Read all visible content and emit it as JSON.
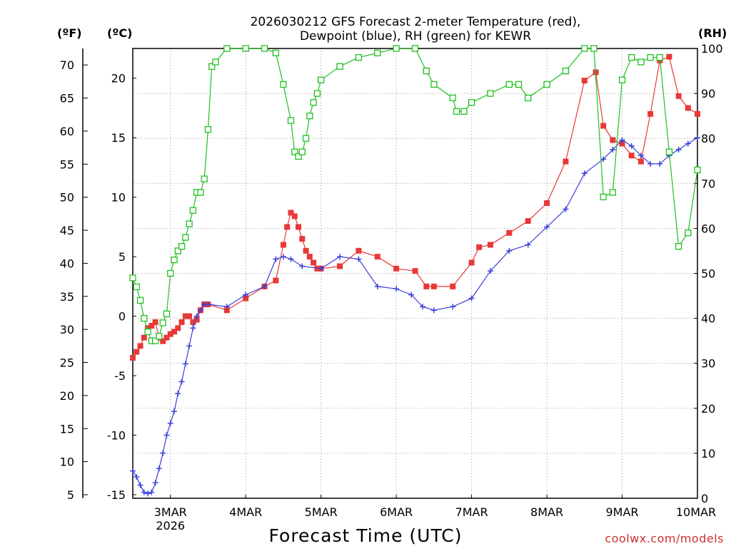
{
  "title_line1": "2026030212 GFS Forecast 2-meter Temperature (red),",
  "title_line2": "Dewpoint (blue), RH (green) for KEWR",
  "unit_f": "(ºF)",
  "unit_c": "(ºC)",
  "unit_rh": "(RH)",
  "xlabel": "Forecast Time (UTC)",
  "credit": "coolwx.com/models",
  "colors": {
    "temperature": "#e83838",
    "dewpoint": "#3a40d8",
    "rh": "#20c020",
    "grid": "#9a9a9a"
  },
  "chart_data": {
    "type": "line",
    "title": "2026030212 GFS Forecast 2-meter Temperature (red), Dewpoint (blue), RH (green) for KEWR",
    "xlabel": "Forecast Time (UTC)",
    "x_unit": "days since 2026-03-02 00Z",
    "xlim": [
      0.5,
      8.0
    ],
    "x_ticks": [
      {
        "x": 1,
        "label": "3MAR",
        "sublabel": "2026"
      },
      {
        "x": 2,
        "label": "4MAR"
      },
      {
        "x": 3,
        "label": "5MAR"
      },
      {
        "x": 4,
        "label": "6MAR"
      },
      {
        "x": 5,
        "label": "7MAR"
      },
      {
        "x": 6,
        "label": "8MAR"
      },
      {
        "x": 7,
        "label": "9MAR"
      },
      {
        "x": 8,
        "label": "10MAR"
      }
    ],
    "y_left_c": {
      "label": "(ºC)",
      "ylim": [
        -15.3,
        22.5
      ],
      "ticks": [
        -15,
        -10,
        -5,
        0,
        5,
        10,
        15,
        20
      ]
    },
    "y_left_f": {
      "label": "(ºF)",
      "ticks": [
        5,
        10,
        15,
        20,
        25,
        30,
        35,
        40,
        45,
        50,
        55,
        60,
        65,
        70
      ]
    },
    "y_right_rh": {
      "label": "(RH)",
      "ylim": [
        0,
        100
      ],
      "ticks": [
        0,
        10,
        20,
        30,
        40,
        50,
        60,
        70,
        80,
        90,
        100
      ]
    },
    "series": [
      {
        "name": "Temperature",
        "axis": "celsius",
        "marker": "square",
        "color": "#e83838",
        "x": [
          0.5,
          0.55,
          0.6,
          0.65,
          0.7,
          0.75,
          0.8,
          0.85,
          0.9,
          0.95,
          1.0,
          1.05,
          1.1,
          1.15,
          1.2,
          1.25,
          1.3,
          1.35,
          1.4,
          1.45,
          1.5,
          1.75,
          2.0,
          2.25,
          2.4,
          2.5,
          2.55,
          2.6,
          2.65,
          2.7,
          2.75,
          2.8,
          2.85,
          2.9,
          2.95,
          3.0,
          3.25,
          3.5,
          3.75,
          4.0,
          4.25,
          4.4,
          4.5,
          4.75,
          5.0,
          5.1,
          5.25,
          5.5,
          5.75,
          6.0,
          6.25,
          6.5,
          6.65,
          6.75,
          6.875,
          7.0,
          7.125,
          7.25,
          7.375,
          7.5,
          7.625,
          7.75,
          7.875,
          8.0
        ],
        "values": [
          -3.5,
          -3.0,
          -2.5,
          -1.8,
          -1.0,
          -0.8,
          -0.5,
          -1.8,
          -2.1,
          -1.8,
          -1.5,
          -1.3,
          -1.0,
          -0.5,
          0.0,
          0.0,
          -0.5,
          -0.3,
          0.5,
          1.0,
          1.0,
          0.5,
          1.5,
          2.5,
          3.0,
          6.0,
          7.5,
          8.7,
          8.4,
          7.5,
          6.5,
          5.5,
          5.0,
          4.5,
          4.0,
          4.0,
          4.2,
          5.5,
          5.0,
          4.0,
          3.8,
          2.5,
          2.5,
          2.5,
          4.5,
          5.8,
          6.0,
          7.0,
          8.0,
          9.5,
          13.0,
          19.8,
          20.5,
          16.0,
          14.8,
          14.5,
          13.5,
          13.0,
          17.0,
          21.5,
          21.8,
          18.5,
          17.5,
          17.0
        ]
      },
      {
        "name": "Dewpoint",
        "axis": "celsius",
        "marker": "plus",
        "color": "#3a40d8",
        "x": [
          0.5,
          0.55,
          0.6,
          0.65,
          0.7,
          0.75,
          0.8,
          0.85,
          0.9,
          0.95,
          1.0,
          1.05,
          1.1,
          1.15,
          1.2,
          1.25,
          1.3,
          1.35,
          1.4,
          1.45,
          1.5,
          1.75,
          2.0,
          2.25,
          2.4,
          2.5,
          2.6,
          2.75,
          3.0,
          3.25,
          3.5,
          3.75,
          4.0,
          4.2,
          4.35,
          4.5,
          4.75,
          5.0,
          5.25,
          5.5,
          5.75,
          6.0,
          6.25,
          6.5,
          6.75,
          6.875,
          7.0,
          7.125,
          7.25,
          7.375,
          7.5,
          7.625,
          7.75,
          7.875,
          8.0
        ],
        "values": [
          -13.0,
          -13.5,
          -14.2,
          -14.8,
          -14.9,
          -14.8,
          -14.0,
          -12.8,
          -11.5,
          -10.0,
          -9.0,
          -8.0,
          -6.5,
          -5.5,
          -4.0,
          -2.5,
          -1.0,
          0.0,
          0.5,
          1.0,
          1.0,
          0.8,
          1.8,
          2.5,
          4.8,
          5.0,
          4.8,
          4.2,
          4.0,
          5.0,
          4.8,
          2.5,
          2.3,
          1.8,
          0.8,
          0.5,
          0.8,
          1.5,
          3.8,
          5.5,
          6.0,
          7.5,
          9.0,
          12.0,
          13.2,
          14.0,
          14.8,
          14.3,
          13.5,
          12.8,
          12.8,
          13.5,
          14.0,
          14.5,
          15.0
        ]
      },
      {
        "name": "Relative Humidity",
        "axis": "rh",
        "marker": "open-square",
        "color": "#20c020",
        "x": [
          0.5,
          0.55,
          0.6,
          0.65,
          0.7,
          0.75,
          0.8,
          0.85,
          0.9,
          0.95,
          1.0,
          1.05,
          1.1,
          1.15,
          1.2,
          1.25,
          1.3,
          1.35,
          1.4,
          1.45,
          1.5,
          1.55,
          1.6,
          1.75,
          2.0,
          2.25,
          2.4,
          2.5,
          2.6,
          2.65,
          2.7,
          2.75,
          2.8,
          2.85,
          2.9,
          2.95,
          3.0,
          3.25,
          3.5,
          3.75,
          4.0,
          4.25,
          4.4,
          4.5,
          4.75,
          4.8,
          4.9,
          5.0,
          5.25,
          5.5,
          5.625,
          5.75,
          6.0,
          6.25,
          6.5,
          6.625,
          6.75,
          6.875,
          7.0,
          7.125,
          7.25,
          7.375,
          7.5,
          7.625,
          7.75,
          7.875,
          8.0
        ],
        "values": [
          49,
          47,
          44,
          40,
          37,
          35,
          35,
          36,
          39,
          41,
          50,
          53,
          55,
          56,
          58,
          61,
          64,
          68,
          68,
          71,
          82,
          96,
          97,
          100,
          100,
          100,
          99,
          92,
          84,
          77,
          76,
          77,
          80,
          85,
          88,
          90,
          93,
          96,
          98,
          99,
          100,
          100,
          95,
          92,
          89,
          86,
          86,
          88,
          90,
          92,
          92,
          89,
          92,
          95,
          100,
          100,
          67,
          68,
          93,
          98,
          97,
          98,
          98,
          77,
          56,
          59,
          73
        ]
      }
    ]
  }
}
